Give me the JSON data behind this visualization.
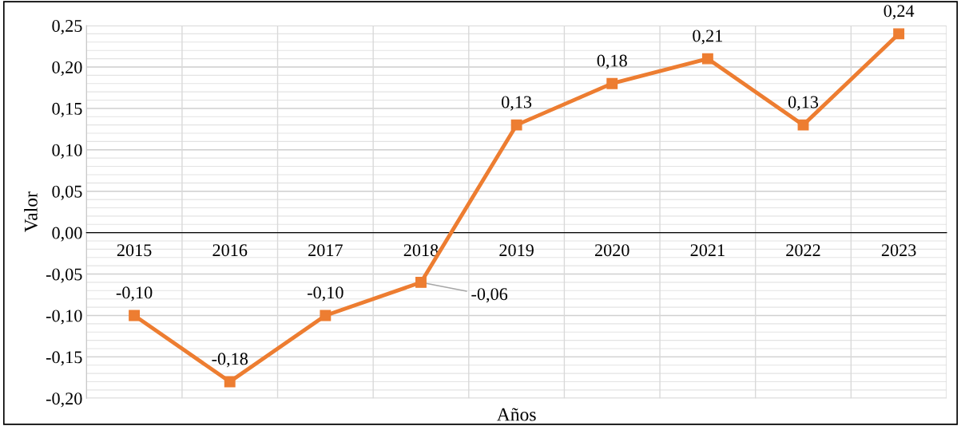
{
  "chart_data": {
    "type": "line",
    "xlabel": "Años",
    "ylabel": "Valor",
    "categories": [
      "2015",
      "2016",
      "2017",
      "2018",
      "2019",
      "2020",
      "2021",
      "2022",
      "2023"
    ],
    "series": [
      {
        "color": "#ed7d31",
        "values": [
          -0.1,
          -0.18,
          -0.1,
          -0.06,
          0.13,
          0.18,
          0.21,
          0.13,
          0.24
        ],
        "value_labels": [
          "-0,10",
          "-0,18",
          "-0,10",
          "-0,06",
          "0,13",
          "0,18",
          "0,21",
          "0,13",
          "0,24"
        ]
      }
    ],
    "ylim": [
      -0.2,
      0.25
    ],
    "yticks": [
      {
        "value": -0.2,
        "label": "-0,20"
      },
      {
        "value": -0.15,
        "label": "-0,15"
      },
      {
        "value": -0.1,
        "label": "-0,10"
      },
      {
        "value": -0.05,
        "label": "-0,05"
      },
      {
        "value": 0,
        "label": "0,00"
      },
      {
        "value": 0.05,
        "label": "0,05"
      },
      {
        "value": 0.1,
        "label": "0,10"
      },
      {
        "value": 0.15,
        "label": "0,15"
      },
      {
        "value": 0.2,
        "label": "0,20"
      },
      {
        "value": 0.25,
        "label": "0,25"
      }
    ],
    "grid": true,
    "marker": "square",
    "line_style": "solid"
  }
}
